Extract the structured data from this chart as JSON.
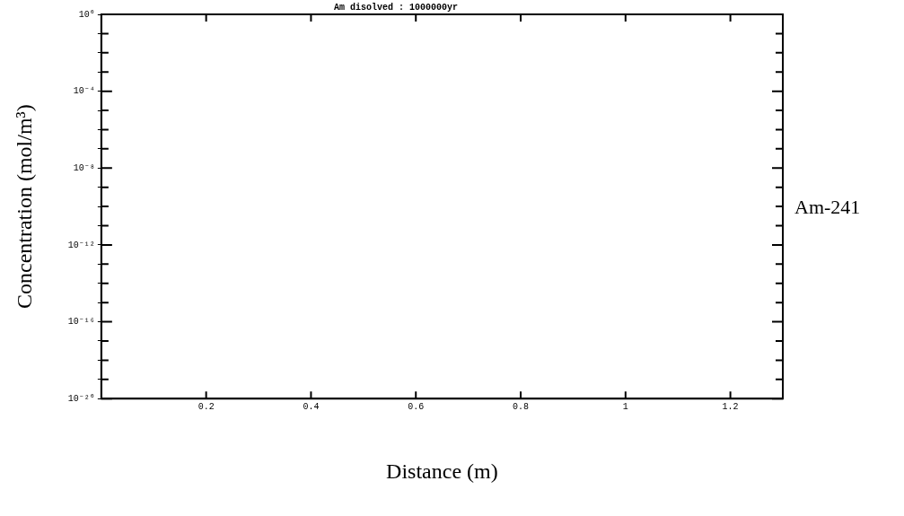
{
  "chart_data": {
    "type": "line",
    "title": "Am disolved : 1000000yr",
    "xlabel": "Distance (m)",
    "ylabel": "Concentration (mol/m³)",
    "log": "y",
    "xlim": [
      0,
      1.3
    ],
    "xticks": [
      0.2,
      0.4,
      0.6,
      0.8,
      1,
      1.2
    ],
    "ylim": [
      1e-20,
      1
    ],
    "yticks": [
      {
        "value": 1,
        "label": "10⁰"
      },
      {
        "value": 0.1,
        "label": null
      },
      {
        "value": 0.01,
        "label": null
      },
      {
        "value": 0.001,
        "label": null
      },
      {
        "value": 0.0001,
        "label": "10⁻⁴"
      },
      {
        "value": 1e-05,
        "label": null
      },
      {
        "value": 1e-06,
        "label": null
      },
      {
        "value": 1e-07,
        "label": null
      },
      {
        "value": 1e-08,
        "label": "10⁻⁸"
      },
      {
        "value": 1e-09,
        "label": null
      },
      {
        "value": 1e-10,
        "label": null
      },
      {
        "value": 1e-11,
        "label": null
      },
      {
        "value": 1e-12,
        "label": "10⁻¹²"
      },
      {
        "value": 1e-13,
        "label": null
      },
      {
        "value": 1e-14,
        "label": null
      },
      {
        "value": 1e-15,
        "label": null
      },
      {
        "value": 1e-16,
        "label": "10⁻¹⁶"
      },
      {
        "value": 1e-17,
        "label": null
      },
      {
        "value": 1e-18,
        "label": null
      },
      {
        "value": 1e-19,
        "label": null
      },
      {
        "value": 1e-20,
        "label": "10⁻²⁰"
      }
    ],
    "annotations": [
      "Am-241"
    ],
    "legend": false,
    "grid": false
  }
}
